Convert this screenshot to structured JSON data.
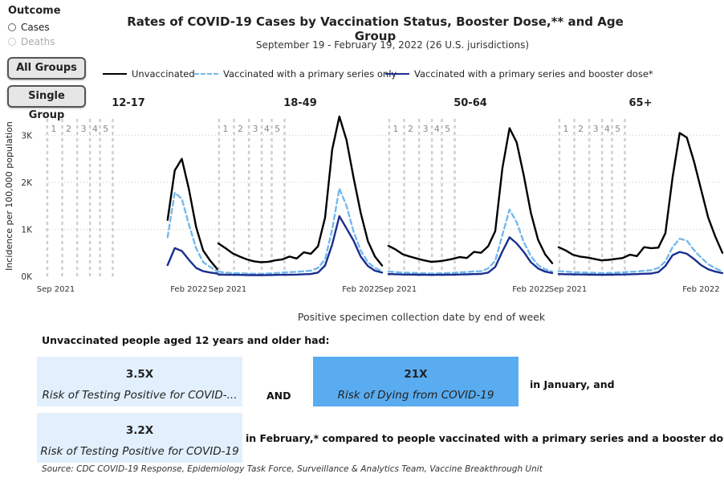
{
  "outcome": {
    "title": "Outcome",
    "options": [
      {
        "label": "Cases",
        "selected": true
      },
      {
        "label": "Deaths",
        "selected": false
      }
    ]
  },
  "buttons": {
    "all_groups": "All Groups",
    "single_group": "Single Group"
  },
  "colors": {
    "unvaccinated": "#000000",
    "primary": "#74b9ec",
    "booster": "#1a2f8f",
    "card_light": "#e1f0fc",
    "card_dark": "#5aacf0"
  },
  "chart_data": {
    "type": "line",
    "title": "Rates of COVID-19 Cases by Vaccination Status, Booster Dose,** and Age Group",
    "subtitle": "September 19 - February 19, 2022 (26 U.S. jurisdictions)",
    "xlabel": "Positive specimen collection date by end of week",
    "ylabel": "Incidence per 100,000 population",
    "ylim": [
      0,
      3400
    ],
    "yticks": [
      {
        "value": 0,
        "label": "0K"
      },
      {
        "value": 1000,
        "label": "1K"
      },
      {
        "value": 2000,
        "label": "2K"
      },
      {
        "value": 3000,
        "label": "3K"
      }
    ],
    "grid": true,
    "legend_position": "top",
    "xtick_labels": [
      "Sep 2021",
      "Feb 2022"
    ],
    "period_labels": [
      "1",
      "2",
      "3",
      "4",
      "5"
    ],
    "series_names": [
      "Unvaccinated",
      "Vaccinated with a primary series only",
      "Vaccinated with a primary series and booster dose*"
    ],
    "panels": [
      {
        "name": "12-17",
        "start_week": 17,
        "series": [
          {
            "name": "Unvaccinated",
            "values": [
              1200,
              2250,
              2500,
              1850,
              1050,
              550,
              330,
              150
            ]
          },
          {
            "name": "Vaccinated with a primary series only",
            "values": [
              830,
              1780,
              1650,
              1100,
              600,
              300,
              200,
              100
            ]
          },
          {
            "name": "Vaccinated with a primary series and booster dose*",
            "values": [
              240,
              600,
              540,
              350,
              180,
              110,
              80,
              60
            ]
          }
        ]
      },
      {
        "name": "18-49",
        "start_week": 0,
        "series": [
          {
            "name": "Unvaccinated",
            "values": [
              700,
              600,
              490,
              420,
              360,
              320,
              300,
              310,
              340,
              360,
              420,
              380,
              510,
              480,
              640,
              1250,
              2700,
              3400,
              2900,
              2100,
              1350,
              750,
              420,
              230
            ]
          },
          {
            "name": "Vaccinated with a primary series only",
            "values": [
              100,
              80,
              70,
              65,
              60,
              55,
              55,
              60,
              70,
              80,
              90,
              95,
              110,
              120,
              180,
              360,
              1000,
              1870,
              1500,
              950,
              550,
              300,
              180,
              110
            ]
          },
          {
            "name": "Vaccinated with a primary series and booster dose*",
            "values": [
              40,
              35,
              32,
              30,
              28,
              26,
              25,
              27,
              30,
              32,
              35,
              38,
              45,
              50,
              80,
              230,
              680,
              1280,
              1020,
              760,
              420,
              220,
              120,
              80
            ]
          }
        ]
      },
      {
        "name": "50-64",
        "start_week": 0,
        "series": [
          {
            "name": "Unvaccinated",
            "values": [
              650,
              570,
              470,
              420,
              380,
              340,
              310,
              320,
              340,
              370,
              410,
              390,
              520,
              500,
              640,
              960,
              2300,
              3150,
              2850,
              2150,
              1350,
              780,
              470,
              280
            ]
          },
          {
            "name": "Vaccinated with a primary series only",
            "values": [
              100,
              90,
              80,
              75,
              70,
              65,
              60,
              65,
              70,
              75,
              85,
              90,
              105,
              110,
              170,
              330,
              880,
              1420,
              1150,
              730,
              430,
              240,
              150,
              100
            ]
          },
          {
            "name": "Vaccinated with a primary series and booster dose*",
            "values": [
              50,
              45,
              40,
              38,
              35,
              32,
              30,
              32,
              34,
              36,
              40,
              42,
              48,
              52,
              80,
              200,
              530,
              830,
              700,
              520,
              300,
              170,
              100,
              70
            ]
          }
        ]
      },
      {
        "name": "65+",
        "start_week": 0,
        "series": [
          {
            "name": "Unvaccinated",
            "values": [
              620,
              550,
              460,
              420,
              400,
              370,
              340,
              350,
              370,
              390,
              460,
              430,
              620,
              600,
              610,
              920,
              2100,
              3050,
              2950,
              2450,
              1850,
              1250,
              850,
              500
            ]
          },
          {
            "name": "Vaccinated with a primary series only",
            "values": [
              110,
              100,
              90,
              85,
              80,
              75,
              70,
              72,
              78,
              85,
              95,
              100,
              120,
              130,
              180,
              320,
              620,
              800,
              760,
              560,
              400,
              260,
              170,
              110
            ]
          },
          {
            "name": "Vaccinated with a primary series and booster dose*",
            "values": [
              50,
              45,
              42,
              40,
              38,
              35,
              33,
              35,
              38,
              40,
              45,
              48,
              55,
              60,
              90,
              220,
              450,
              520,
              480,
              370,
              240,
              150,
              100,
              70
            ]
          }
        ]
      }
    ]
  },
  "summary": {
    "heading": "Unvaccinated people aged 12 years and older had:",
    "card1_value": "3.5X",
    "card1_label": "Risk of Testing Positive for COVID-...",
    "and_text": "AND",
    "card2_value": "21X",
    "card2_label": "Risk of Dying from COVID-19",
    "january_text": "in January, and",
    "card3_value": "3.2X",
    "card3_label": "Risk of Testing Positive for COVID-19",
    "february_text": "in February,* compared to people vaccinated with a primary series and a booster dose.**"
  },
  "source": "Source: CDC COVID-19 Response, Epidemiology Task Force, Surveillance & Analytics Team, Vaccine Breakthrough Unit"
}
